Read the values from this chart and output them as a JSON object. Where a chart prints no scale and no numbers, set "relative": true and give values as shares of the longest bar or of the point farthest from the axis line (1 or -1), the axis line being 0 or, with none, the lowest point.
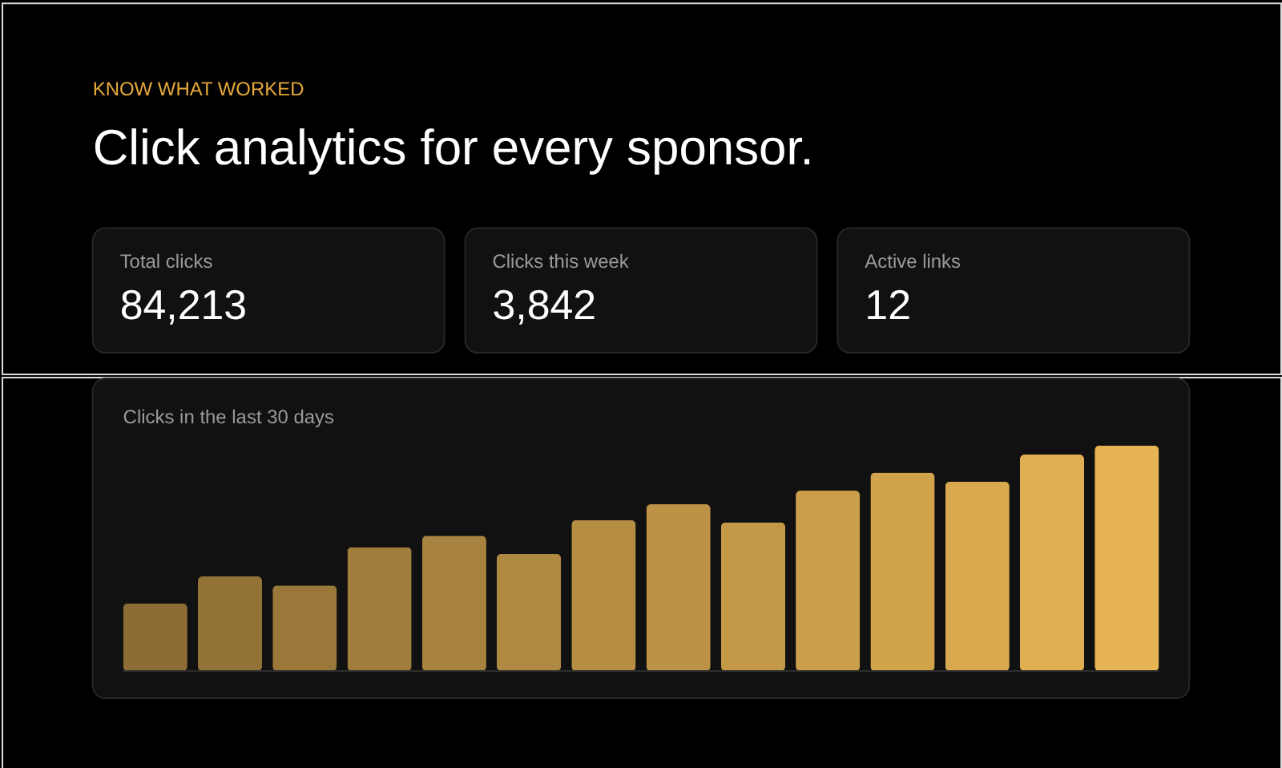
{
  "chart_data": [
    {
      "type": "other",
      "title": "Click analytics for every sponsor.",
      "annotations": [
        "KNOW WHAT WORKED"
      ],
      "categories": [
        "Total clicks",
        "Clicks this week",
        "Active links"
      ],
      "value_labels": [
        "84,213",
        "3,842",
        "12"
      ]
    },
    {
      "type": "bar",
      "title": "Clicks in the last 30 days",
      "relative": true,
      "categories": [
        null,
        null,
        null,
        null,
        null,
        null,
        null,
        null,
        null,
        null,
        null,
        null,
        null,
        null
      ],
      "values": [
        0.3,
        0.42,
        0.38,
        0.55,
        0.6,
        0.52,
        0.67,
        0.74,
        0.66,
        0.8,
        0.88,
        0.84,
        0.96,
        1
      ],
      "colors": [
        "#8c6d36",
        "#937238",
        "#9a783a",
        "#a17d3d",
        "#a8833f",
        "#af8841",
        "#b68e43",
        "#bc9346",
        "#c39948",
        "#ca9e4a",
        "#d1a44c",
        "#d8a94f",
        "#dfaf51",
        "#e6b453"
      ]
    }
  ]
}
